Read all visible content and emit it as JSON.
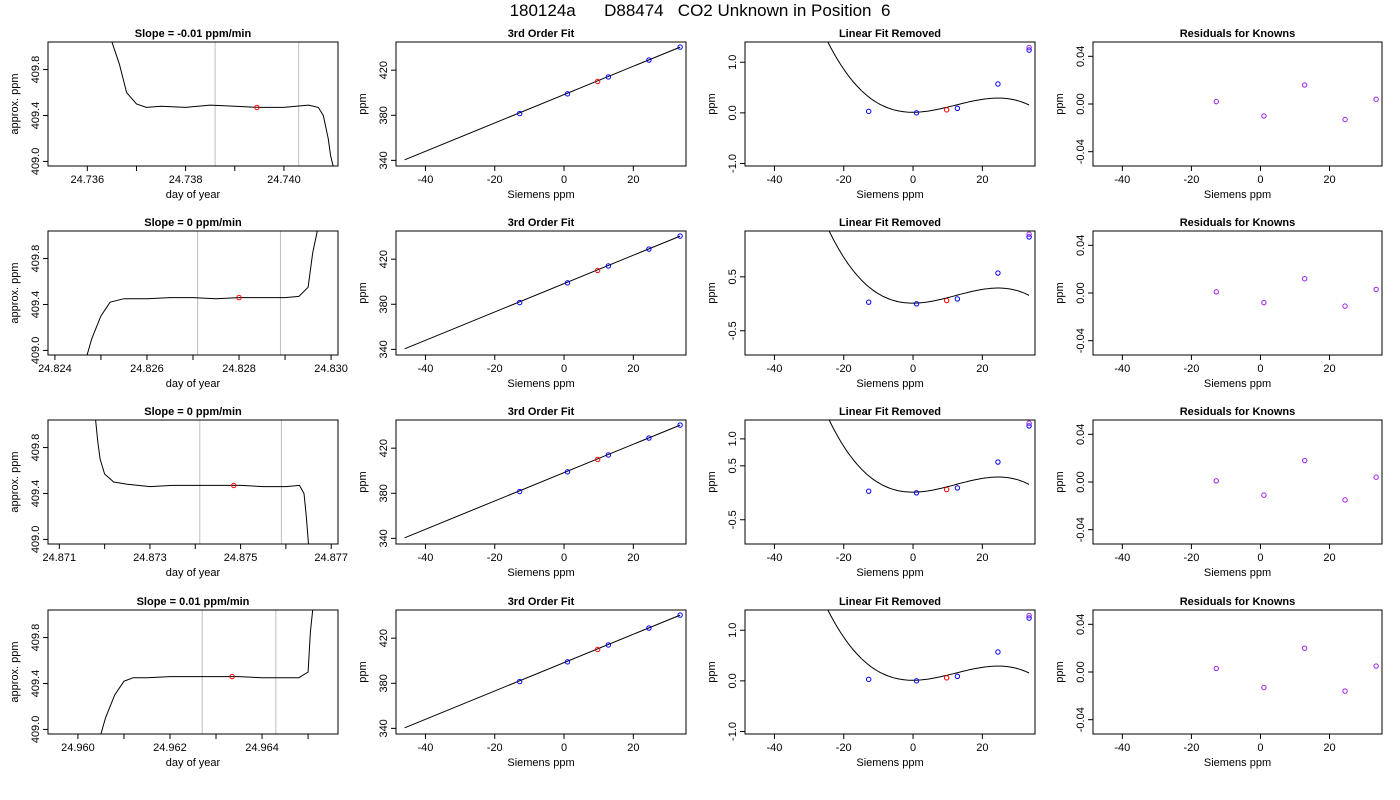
{
  "title": "180124a      D88474   CO2 Unknown in Position  6",
  "chart_data": [
    {
      "type": "line",
      "title": "Slope =  -0.01  ppm/min",
      "xlabel": "day of year",
      "ylabel": "approx. ppm",
      "xlim": [
        24.7352,
        24.7411
      ],
      "ylim": [
        408.96,
        410.04
      ],
      "xticks": [
        24.736,
        24.738,
        24.74
      ],
      "xtick_labels": [
        "24.736",
        "24.738",
        "24.740"
      ],
      "yticks": [
        409.0,
        409.4,
        409.8
      ],
      "ytick_labels": [
        "409.0",
        "409.4",
        "409.8"
      ],
      "minor_xticks": [
        24.737,
        24.739
      ],
      "vlines": [
        24.7386,
        24.7403
      ],
      "series": [
        {
          "x": [
            24.7365,
            24.73665,
            24.7368,
            24.737,
            24.7372,
            24.7375,
            24.738,
            24.7385,
            24.739,
            24.7395,
            24.74,
            24.7405,
            24.7407,
            24.7408,
            24.7409,
            24.74095,
            24.741
          ],
          "y": [
            410.04,
            409.85,
            409.6,
            409.5,
            409.47,
            409.48,
            409.47,
            409.49,
            409.48,
            409.47,
            409.47,
            409.49,
            409.47,
            409.4,
            409.2,
            409.05,
            408.96
          ]
        }
      ],
      "marker": {
        "x": 24.73945,
        "y": 409.47
      }
    },
    {
      "type": "line",
      "title": "3rd Order Fit",
      "xlabel": "Siemens ppm",
      "ylabel": "ppm",
      "xlim": [
        -48.5,
        35.2
      ],
      "ylim": [
        335,
        445
      ],
      "xticks": [
        -40,
        -20,
        0,
        20
      ],
      "xtick_labels": [
        "-40",
        "-20",
        "0",
        "20"
      ],
      "yticks": [
        340,
        380,
        420
      ],
      "ytick_labels": [
        "340",
        "380",
        "420"
      ],
      "series": [
        {
          "x": [
            -46,
            33.5
          ],
          "y": [
            340.5,
            440.5
          ]
        }
      ],
      "points_blue": [
        [
          -12.8,
          381.5
        ],
        [
          1,
          399
        ],
        [
          12.8,
          414
        ],
        [
          24.5,
          429
        ],
        [
          33.5,
          440.5
        ]
      ],
      "points_red": [
        [
          9.7,
          410
        ]
      ]
    },
    {
      "type": "line",
      "title": "Linear Fit Removed",
      "xlabel": "Siemens ppm",
      "ylabel": "ppm",
      "xlim": [
        -48.5,
        35.2
      ],
      "ylim": [
        -1.05,
        1.4
      ],
      "xticks": [
        -40,
        -20,
        0,
        20
      ],
      "xtick_labels": [
        "-40",
        "-20",
        "0",
        "20"
      ],
      "yticks": [
        -1.0,
        0.0,
        1.0
      ],
      "ytick_labels": [
        "-1.0",
        "0.0",
        "1.0"
      ],
      "curve": {
        "a": -3.75e-05,
        "b": 0.00138,
        "c": 0.00013,
        "d": 0.012,
        "x0": -46,
        "x1": 33.5
      },
      "points_blue": [
        [
          -12.8,
          0.03
        ],
        [
          1,
          0
        ],
        [
          12.8,
          0.09
        ],
        [
          24.5,
          0.57
        ],
        [
          33.5,
          1.24
        ]
      ],
      "points_red": [
        [
          9.7,
          0.06
        ]
      ],
      "points_purple": [
        [
          33.5,
          1.29
        ]
      ]
    },
    {
      "type": "scatter",
      "title": "Residuals for Knowns",
      "xlabel": "Siemens ppm",
      "ylabel": "ppm",
      "xlim": [
        -48.5,
        35.2
      ],
      "ylim": [
        -0.052,
        0.052
      ],
      "xticks": [
        -40,
        -20,
        0,
        20
      ],
      "xtick_labels": [
        "-40",
        "-20",
        "0",
        "20"
      ],
      "yticks": [
        -0.04,
        0.0,
        0.04
      ],
      "ytick_labels": [
        "-0.04",
        "0.00",
        "0.04"
      ],
      "points": [
        [
          -12.8,
          0.002
        ],
        [
          1,
          -0.01
        ],
        [
          12.8,
          0.016
        ],
        [
          24.5,
          -0.013
        ],
        [
          33.5,
          0.004
        ]
      ]
    },
    {
      "type": "line",
      "title": "Slope =  0  ppm/min",
      "xlabel": "day of year",
      "ylabel": "approx. ppm",
      "xlim": [
        24.82385,
        24.83015
      ],
      "ylim": [
        408.96,
        410.04
      ],
      "xticks": [
        24.824,
        24.826,
        24.828,
        24.83
      ],
      "xtick_labels": [
        "24.824",
        "24.826",
        "24.828",
        "24.830"
      ],
      "yticks": [
        409.0,
        409.4,
        409.8
      ],
      "ytick_labels": [
        "409.0",
        "409.4",
        "409.8"
      ],
      "minor_xticks": [
        24.825,
        24.827,
        24.829
      ],
      "vlines": [
        24.8271,
        24.8289
      ],
      "series": [
        {
          "x": [
            24.8247,
            24.8248,
            24.825,
            24.8252,
            24.8255,
            24.826,
            24.8265,
            24.827,
            24.8275,
            24.828,
            24.8285,
            24.829,
            24.8293,
            24.8295,
            24.8296,
            24.8297
          ],
          "y": [
            408.96,
            409.1,
            409.3,
            409.42,
            409.45,
            409.45,
            409.46,
            409.46,
            409.45,
            409.46,
            409.46,
            409.46,
            409.47,
            409.55,
            409.85,
            410.04
          ]
        }
      ],
      "marker": {
        "x": 24.828,
        "y": 409.46
      }
    },
    {
      "type": "line",
      "title": "3rd Order Fit",
      "xlabel": "Siemens ppm",
      "ylabel": "ppm",
      "xlim": [
        -48.5,
        35.2
      ],
      "ylim": [
        335,
        445
      ],
      "xticks": [
        -40,
        -20,
        0,
        20
      ],
      "xtick_labels": [
        "-40",
        "-20",
        "0",
        "20"
      ],
      "yticks": [
        340,
        380,
        420
      ],
      "ytick_labels": [
        "340",
        "380",
        "420"
      ],
      "series": [
        {
          "x": [
            -46,
            33.5
          ],
          "y": [
            340.5,
            440.5
          ]
        }
      ],
      "points_blue": [
        [
          -12.8,
          381.5
        ],
        [
          1,
          399
        ],
        [
          12.8,
          414
        ],
        [
          24.5,
          429
        ],
        [
          33.5,
          440.5
        ]
      ],
      "points_red": [
        [
          9.7,
          410
        ]
      ]
    },
    {
      "type": "line",
      "title": "Linear Fit Removed",
      "xlabel": "Siemens ppm",
      "ylabel": "ppm",
      "xlim": [
        -48.5,
        35.2
      ],
      "ylim": [
        -0.95,
        1.35
      ],
      "xticks": [
        -40,
        -20,
        0,
        20
      ],
      "xtick_labels": [
        "-40",
        "-20",
        "0",
        "20"
      ],
      "yticks": [
        -0.5,
        0.5
      ],
      "ytick_labels": [
        "-0.5",
        "0.5"
      ],
      "curve": {
        "a": -3.75e-05,
        "b": 0.00138,
        "c": 0.00013,
        "d": 0.012,
        "x0": -46,
        "x1": 33.5
      },
      "points_blue": [
        [
          -12.8,
          0.03
        ],
        [
          1,
          0
        ],
        [
          12.8,
          0.09
        ],
        [
          24.5,
          0.57
        ],
        [
          33.5,
          1.24
        ]
      ],
      "points_red": [
        [
          9.7,
          0.06
        ]
      ],
      "points_purple": [
        [
          33.5,
          1.29
        ]
      ]
    },
    {
      "type": "scatter",
      "title": "Residuals for Knowns",
      "xlabel": "Siemens ppm",
      "ylabel": "ppm",
      "xlim": [
        -48.5,
        35.2
      ],
      "ylim": [
        -0.052,
        0.052
      ],
      "xticks": [
        -40,
        -20,
        0,
        20
      ],
      "xtick_labels": [
        "-40",
        "-20",
        "0",
        "20"
      ],
      "yticks": [
        -0.04,
        0.0,
        0.04
      ],
      "ytick_labels": [
        "-0.04",
        "0.00",
        "0.04"
      ],
      "points": [
        [
          -12.8,
          0.001
        ],
        [
          1,
          -0.008
        ],
        [
          12.8,
          0.012
        ],
        [
          24.5,
          -0.011
        ],
        [
          33.5,
          0.003
        ]
      ]
    },
    {
      "type": "line",
      "title": "Slope =  0  ppm/min",
      "xlabel": "day of year",
      "ylabel": "approx. ppm",
      "xlim": [
        24.87075,
        24.87715
      ],
      "ylim": [
        408.96,
        410.04
      ],
      "xticks": [
        24.871,
        24.873,
        24.875,
        24.877
      ],
      "xtick_labels": [
        "24.871",
        "24.873",
        "24.875",
        "24.877"
      ],
      "yticks": [
        409.0,
        409.4,
        409.8
      ],
      "ytick_labels": [
        "409.0",
        "409.4",
        "409.8"
      ],
      "minor_xticks": [
        24.872,
        24.874,
        24.876
      ],
      "vlines": [
        24.8741,
        24.8759
      ],
      "series": [
        {
          "x": [
            24.8718,
            24.87185,
            24.8719,
            24.872,
            24.8722,
            24.8725,
            24.873,
            24.8735,
            24.874,
            24.8745,
            24.875,
            24.8755,
            24.876,
            24.8763,
            24.8764,
            24.87645,
            24.8765
          ],
          "y": [
            410.04,
            409.85,
            409.7,
            409.57,
            409.5,
            409.48,
            409.46,
            409.47,
            409.47,
            409.47,
            409.47,
            409.46,
            409.46,
            409.47,
            409.4,
            409.2,
            408.96
          ]
        }
      ],
      "marker": {
        "x": 24.87485,
        "y": 409.47
      }
    },
    {
      "type": "line",
      "title": "3rd Order Fit",
      "xlabel": "Siemens ppm",
      "ylabel": "ppm",
      "xlim": [
        -48.5,
        35.2
      ],
      "ylim": [
        335,
        445
      ],
      "xticks": [
        -40,
        -20,
        0,
        20
      ],
      "xtick_labels": [
        "-40",
        "-20",
        "0",
        "20"
      ],
      "yticks": [
        340,
        380,
        420
      ],
      "ytick_labels": [
        "340",
        "380",
        "420"
      ],
      "series": [
        {
          "x": [
            -46,
            33.5
          ],
          "y": [
            340.5,
            440.5
          ]
        }
      ],
      "points_blue": [
        [
          -12.8,
          381.5
        ],
        [
          1,
          399
        ],
        [
          12.8,
          414
        ],
        [
          24.5,
          429
        ],
        [
          33.5,
          440.5
        ]
      ],
      "points_red": [
        [
          9.7,
          410
        ]
      ]
    },
    {
      "type": "line",
      "title": "Linear Fit Removed",
      "xlabel": "Siemens ppm",
      "ylabel": "ppm",
      "xlim": [
        -48.5,
        35.2
      ],
      "ylim": [
        -0.95,
        1.35
      ],
      "xticks": [
        -40,
        -20,
        0,
        20
      ],
      "xtick_labels": [
        "-40",
        "-20",
        "0",
        "20"
      ],
      "yticks": [
        -0.5,
        0.5,
        1.0
      ],
      "ytick_labels": [
        "-0.5",
        "0.5",
        "1.0"
      ],
      "curve": {
        "a": -3.75e-05,
        "b": 0.00138,
        "c": 0.00013,
        "d": 0.012,
        "x0": -46,
        "x1": 33.5
      },
      "points_blue": [
        [
          -12.8,
          0.03
        ],
        [
          1,
          0
        ],
        [
          12.8,
          0.09
        ],
        [
          24.5,
          0.57
        ],
        [
          33.5,
          1.24
        ]
      ],
      "points_red": [
        [
          9.7,
          0.06
        ]
      ],
      "points_purple": [
        [
          33.5,
          1.29
        ]
      ]
    },
    {
      "type": "scatter",
      "title": "Residuals for Knowns",
      "xlabel": "Siemens ppm",
      "ylabel": "ppm",
      "xlim": [
        -48.5,
        35.2
      ],
      "ylim": [
        -0.052,
        0.052
      ],
      "xticks": [
        -40,
        -20,
        0,
        20
      ],
      "xtick_labels": [
        "-40",
        "-20",
        "0",
        "20"
      ],
      "yticks": [
        -0.04,
        0.0,
        0.04
      ],
      "ytick_labels": [
        "-0.04",
        "0.00",
        "0.04"
      ],
      "points": [
        [
          -12.8,
          0.001
        ],
        [
          1,
          -0.011
        ],
        [
          12.8,
          0.018
        ],
        [
          24.5,
          -0.015
        ],
        [
          33.5,
          0.004
        ]
      ]
    },
    {
      "type": "line",
      "title": "Slope =  0.01  ppm/min",
      "xlabel": "day of year",
      "ylabel": "approx. ppm",
      "xlim": [
        24.95935,
        24.96565
      ],
      "ylim": [
        408.96,
        410.04
      ],
      "xticks": [
        24.96,
        24.962,
        24.964
      ],
      "xtick_labels": [
        "24.960",
        "24.962",
        "24.964"
      ],
      "yticks": [
        409.0,
        409.4,
        409.8
      ],
      "ytick_labels": [
        "409.0",
        "409.4",
        "409.8"
      ],
      "minor_xticks": [
        24.961,
        24.963,
        24.965
      ],
      "vlines": [
        24.9627,
        24.9643
      ],
      "series": [
        {
          "x": [
            24.9605,
            24.9606,
            24.9608,
            24.961,
            24.9612,
            24.9615,
            24.962,
            24.9625,
            24.963,
            24.9635,
            24.964,
            24.9645,
            24.9648,
            24.965,
            24.96505,
            24.9651
          ],
          "y": [
            408.96,
            409.1,
            409.3,
            409.42,
            409.45,
            409.45,
            409.46,
            409.46,
            409.46,
            409.46,
            409.45,
            409.45,
            409.45,
            409.5,
            409.85,
            410.04
          ]
        }
      ],
      "marker": {
        "x": 24.96335,
        "y": 409.46
      }
    },
    {
      "type": "line",
      "title": "3rd Order Fit",
      "xlabel": "Siemens ppm",
      "ylabel": "ppm",
      "xlim": [
        -48.5,
        35.2
      ],
      "ylim": [
        335,
        445
      ],
      "xticks": [
        -40,
        -20,
        0,
        20
      ],
      "xtick_labels": [
        "-40",
        "-20",
        "0",
        "20"
      ],
      "yticks": [
        340,
        380,
        420
      ],
      "ytick_labels": [
        "340",
        "380",
        "420"
      ],
      "series": [
        {
          "x": [
            -46,
            33.5
          ],
          "y": [
            340.5,
            440.5
          ]
        }
      ],
      "points_blue": [
        [
          -12.8,
          381.5
        ],
        [
          1,
          399
        ],
        [
          12.8,
          414
        ],
        [
          24.5,
          429
        ],
        [
          33.5,
          440.5
        ]
      ],
      "points_red": [
        [
          9.7,
          410
        ]
      ]
    },
    {
      "type": "line",
      "title": "Linear Fit Removed",
      "xlabel": "Siemens ppm",
      "ylabel": "ppm",
      "xlim": [
        -48.5,
        35.2
      ],
      "ylim": [
        -1.05,
        1.4
      ],
      "xticks": [
        -40,
        -20,
        0,
        20
      ],
      "xtick_labels": [
        "-40",
        "-20",
        "0",
        "20"
      ],
      "yticks": [
        -1.0,
        0.0,
        1.0
      ],
      "ytick_labels": [
        "-1.0",
        "0.0",
        "1.0"
      ],
      "curve": {
        "a": -3.75e-05,
        "b": 0.00138,
        "c": 0.00013,
        "d": 0.012,
        "x0": -46,
        "x1": 33.5
      },
      "points_blue": [
        [
          -12.8,
          0.03
        ],
        [
          1,
          0
        ],
        [
          12.8,
          0.09
        ],
        [
          24.5,
          0.57
        ],
        [
          33.5,
          1.24
        ]
      ],
      "points_red": [
        [
          9.7,
          0.06
        ]
      ],
      "points_purple": [
        [
          33.5,
          1.29
        ]
      ]
    },
    {
      "type": "scatter",
      "title": "Residuals for Knowns",
      "xlabel": "Siemens ppm",
      "ylabel": "ppm",
      "xlim": [
        -48.5,
        35.2
      ],
      "ylim": [
        -0.052,
        0.052
      ],
      "xticks": [
        -40,
        -20,
        0,
        20
      ],
      "xtick_labels": [
        "-40",
        "-20",
        "0",
        "20"
      ],
      "yticks": [
        -0.04,
        0.0,
        0.04
      ],
      "ytick_labels": [
        "-0.04",
        "0.00",
        "0.04"
      ],
      "points": [
        [
          -12.8,
          0.003
        ],
        [
          1,
          -0.013
        ],
        [
          12.8,
          0.02
        ],
        [
          24.5,
          -0.016
        ],
        [
          33.5,
          0.005
        ]
      ]
    }
  ],
  "colors": {
    "line": "#000000",
    "vline": "#bebebe",
    "blue": "#0000ff",
    "red": "#ff0000",
    "purple": "#a020f0",
    "orange": "#ff8c00"
  }
}
